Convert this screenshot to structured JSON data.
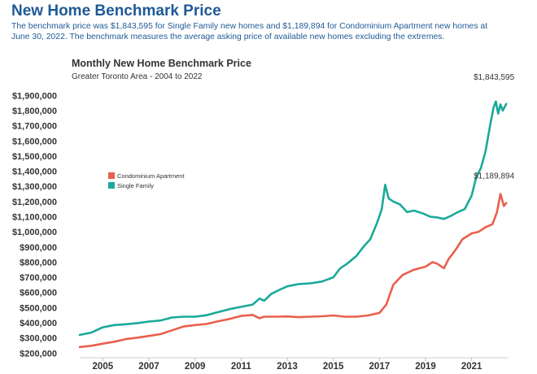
{
  "page": {
    "title": "New Home Benchmark Price",
    "description": "The benchmark price was $1,843,595 for Single Family new homes and $1,189,894 for Condominium Apartment new homes at June 30, 2022. The benchmark measures the average asking price of available new homes excluding the extremes."
  },
  "chart_data": {
    "type": "line",
    "title": "Monthly New Home Benchmark Price",
    "subtitle": "Greater Toronto Area - 2004 to 2022",
    "xlabel": "",
    "ylabel": "",
    "xlim": [
      2004.0,
      2022.6
    ],
    "ylim": [
      180000,
      1950000
    ],
    "y_ticks": [
      200000,
      300000,
      400000,
      500000,
      600000,
      700000,
      800000,
      900000,
      1000000,
      1100000,
      1200000,
      1300000,
      1400000,
      1500000,
      1600000,
      1700000,
      1800000,
      1900000
    ],
    "y_tick_labels": [
      "$200,000",
      "$300,000",
      "$400,000",
      "$500,000",
      "$600,000",
      "$700,000",
      "$800,000",
      "$900,000",
      "$1,000,000",
      "$1,100,000",
      "$1,200,000",
      "$1,300,000",
      "$1,400,000",
      "$1,500,000",
      "$1,600,000",
      "$1,700,000",
      "$1,800,000",
      "$1,900,000"
    ],
    "x_ticks": [
      2005,
      2007,
      2009,
      2011,
      2013,
      2015,
      2017,
      2019,
      2021
    ],
    "x_tick_labels": [
      "2005",
      "2007",
      "2009",
      "2011",
      "2013",
      "2015",
      "2017",
      "2019",
      "2021"
    ],
    "grid": false,
    "legend": "upper-left",
    "series": [
      {
        "name": "Condominium Apartment",
        "color": "#e8604c",
        "end_label": "$1,189,894",
        "x": [
          2004.0,
          2004.5,
          2005.0,
          2005.5,
          2006.0,
          2006.5,
          2007.0,
          2007.5,
          2008.0,
          2008.5,
          2009.0,
          2009.5,
          2010.0,
          2010.5,
          2011.0,
          2011.5,
          2011.8,
          2012.0,
          2012.5,
          2013.0,
          2013.5,
          2014.0,
          2014.5,
          2015.0,
          2015.5,
          2016.0,
          2016.5,
          2017.0,
          2017.3,
          2017.6,
          2018.0,
          2018.5,
          2019.0,
          2019.3,
          2019.5,
          2019.8,
          2020.0,
          2020.3,
          2020.6,
          2021.0,
          2021.3,
          2021.6,
          2021.9,
          2022.1,
          2022.25,
          2022.4,
          2022.5
        ],
        "values": [
          240000,
          248000,
          262000,
          275000,
          292000,
          302000,
          313000,
          325000,
          350000,
          375000,
          385000,
          392000,
          410000,
          425000,
          445000,
          452000,
          430000,
          440000,
          440000,
          442000,
          437000,
          440000,
          443000,
          448000,
          440000,
          440000,
          448000,
          465000,
          520000,
          650000,
          715000,
          750000,
          770000,
          800000,
          790000,
          760000,
          820000,
          880000,
          950000,
          990000,
          1000000,
          1030000,
          1050000,
          1130000,
          1250000,
          1170000,
          1189894
        ]
      },
      {
        "name": "Single Family",
        "color": "#1aa99a",
        "end_label": "$1,843,595",
        "x": [
          2004.0,
          2004.5,
          2005.0,
          2005.5,
          2006.0,
          2006.5,
          2007.0,
          2007.5,
          2008.0,
          2008.5,
          2009.0,
          2009.5,
          2010.0,
          2010.5,
          2011.0,
          2011.5,
          2011.8,
          2012.0,
          2012.3,
          2012.7,
          2013.0,
          2013.5,
          2014.0,
          2014.5,
          2015.0,
          2015.3,
          2015.6,
          2016.0,
          2016.3,
          2016.6,
          2016.9,
          2017.1,
          2017.25,
          2017.4,
          2017.6,
          2017.9,
          2018.2,
          2018.5,
          2018.9,
          2019.2,
          2019.5,
          2019.8,
          2020.1,
          2020.4,
          2020.7,
          2021.0,
          2021.2,
          2021.4,
          2021.6,
          2021.8,
          2021.95,
          2022.05,
          2022.15,
          2022.25,
          2022.35,
          2022.5
        ],
        "values": [
          320000,
          335000,
          370000,
          385000,
          390000,
          398000,
          408000,
          415000,
          435000,
          440000,
          440000,
          450000,
          470000,
          490000,
          505000,
          520000,
          560000,
          545000,
          590000,
          620000,
          640000,
          655000,
          660000,
          672000,
          700000,
          760000,
          790000,
          840000,
          900000,
          950000,
          1060000,
          1150000,
          1310000,
          1220000,
          1200000,
          1180000,
          1130000,
          1140000,
          1120000,
          1100000,
          1095000,
          1085000,
          1105000,
          1130000,
          1150000,
          1240000,
          1360000,
          1420000,
          1530000,
          1700000,
          1820000,
          1860000,
          1780000,
          1840000,
          1800000,
          1843595
        ]
      }
    ]
  }
}
